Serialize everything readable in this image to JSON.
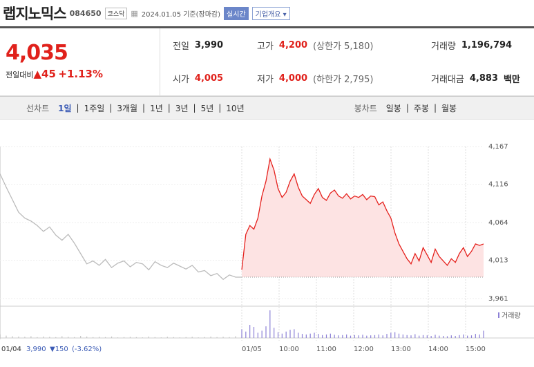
{
  "header": {
    "name": "랩지노믹스",
    "code": "084650",
    "market": "코스닥",
    "date": "2024.01.05 기준(장마감)",
    "realtime": "실시간",
    "company": "기업개요"
  },
  "price": {
    "current": "4,035",
    "change_label": "전일대비",
    "change": "▲45",
    "rate": "+1.13%"
  },
  "stats": {
    "rows": [
      [
        {
          "label": "전일",
          "value": "3,990",
          "color": "#222"
        },
        {
          "label": "고가",
          "value": "4,200",
          "note": "(상한가 5,180)",
          "color": "#e0211b"
        },
        {
          "label": "거래량",
          "value": "1,196,794",
          "color": "#222"
        }
      ],
      [
        {
          "label": "시가",
          "value": "4,005",
          "color": "#e0211b"
        },
        {
          "label": "저가",
          "value": "4,000",
          "note": "(하한가 2,795)",
          "color": "#e0211b"
        },
        {
          "label": "거래대금",
          "value": "4,883",
          "unit": "백만",
          "color": "#222"
        }
      ]
    ]
  },
  "tabs": {
    "line_label": "선차트",
    "line": [
      "1일",
      "1주일",
      "3개월",
      "1년",
      "3년",
      "5년",
      "10년"
    ],
    "candle_label": "봉차트",
    "candle": [
      "일봉",
      "주봉",
      "월봉"
    ]
  },
  "chart_data": {
    "type": "line",
    "ylim": [
      3961,
      4167
    ],
    "yticks": [
      {
        "value": 3961,
        "label": "3,961"
      },
      {
        "value": 4013,
        "label": "4,013"
      },
      {
        "value": 4064,
        "label": "4,064"
      },
      {
        "value": 4116,
        "label": "4,116"
      },
      {
        "value": 4167,
        "label": "4,167"
      }
    ],
    "xticks": [
      "01/04",
      "01/05",
      "10:00",
      "11:00",
      "12:00",
      "13:00",
      "14:00",
      "15:00"
    ],
    "prev_close": 3990,
    "series": [
      {
        "color": "#bbbbbb",
        "values": [
          4130,
          4112,
          4095,
          4078,
          4070,
          4066,
          4060,
          4052,
          4058,
          4047,
          4040,
          4048,
          4036,
          4022,
          4008,
          4012,
          4006,
          4014,
          4003,
          4009,
          4012,
          4004,
          4010,
          4008,
          4000,
          4011,
          4006,
          4003,
          4009,
          4005,
          4001,
          4006,
          3997,
          3999,
          3992,
          3995,
          3987,
          3993,
          3990,
          3990
        ]
      },
      {
        "color": "#e5201c",
        "fill": "#fde3e3",
        "values": [
          4000,
          4048,
          4060,
          4055,
          4070,
          4100,
          4120,
          4150,
          4135,
          4110,
          4098,
          4105,
          4120,
          4130,
          4112,
          4100,
          4095,
          4090,
          4102,
          4110,
          4098,
          4094,
          4104,
          4108,
          4100,
          4097,
          4103,
          4096,
          4100,
          4098,
          4102,
          4095,
          4100,
          4099,
          4088,
          4092,
          4080,
          4070,
          4050,
          4035,
          4025,
          4015,
          4008,
          4022,
          4012,
          4030,
          4020,
          4010,
          4028,
          4018,
          4012,
          4006,
          4015,
          4010,
          4022,
          4030,
          4018,
          4025,
          4035,
          4033,
          4035
        ]
      }
    ],
    "volume": {
      "label": "거래량",
      "series": [
        {
          "color": "#c4c4c4",
          "values": [
            12,
            8,
            6,
            5,
            4,
            6,
            3,
            5,
            4,
            3,
            6,
            4,
            3,
            7,
            5,
            3,
            4,
            3,
            5,
            2,
            3,
            4,
            3,
            2,
            5,
            3,
            2,
            4,
            3,
            2,
            3,
            4,
            2,
            3,
            5,
            3,
            4,
            3,
            6,
            9
          ]
        },
        {
          "color": "#8c80d6",
          "values": [
            30,
            22,
            45,
            38,
            18,
            25,
            40,
            95,
            35,
            20,
            15,
            22,
            28,
            30,
            18,
            14,
            12,
            15,
            18,
            14,
            10,
            12,
            15,
            11,
            9,
            10,
            12,
            8,
            10,
            9,
            11,
            8,
            9,
            10,
            12,
            9,
            14,
            18,
            20,
            15,
            12,
            10,
            9,
            13,
            8,
            10,
            9,
            7,
            11,
            8,
            7,
            6,
            9,
            7,
            10,
            12,
            8,
            9,
            14,
            12,
            25
          ]
        }
      ]
    }
  },
  "footer": {
    "date": "01/04",
    "close": "3,990",
    "change": "▼150",
    "rate": "(-3.62%)"
  }
}
